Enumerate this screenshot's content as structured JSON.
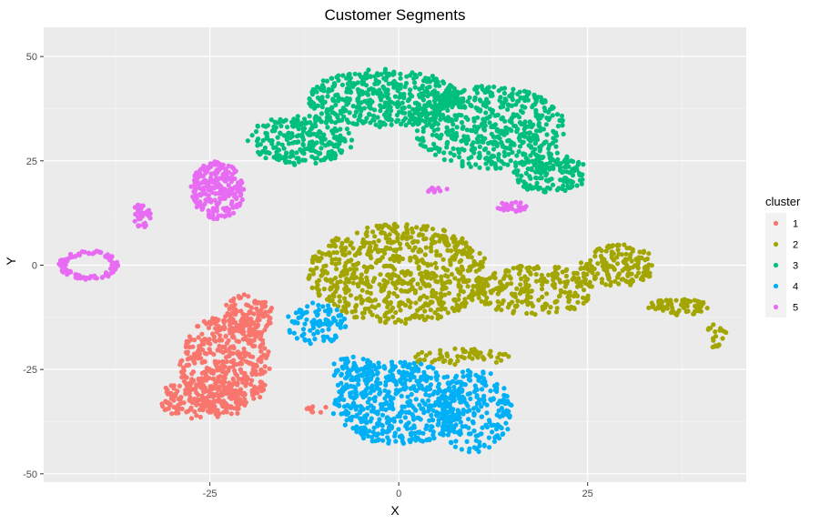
{
  "chart_data": {
    "type": "scatter",
    "title": "Customer Segments",
    "xlabel": "X",
    "ylabel": "Y",
    "xlim": [
      -47,
      46
    ],
    "ylim": [
      -52,
      57
    ],
    "x_ticks": [
      -25,
      0,
      25
    ],
    "y_ticks": [
      -50,
      -25,
      0,
      25,
      50
    ],
    "x_tick_labels": [
      "-25",
      "0",
      "25"
    ],
    "y_tick_labels": [
      "-50",
      "-25",
      "0",
      "25",
      "50"
    ],
    "grid": true,
    "legend": {
      "title": "cluster",
      "position": "right"
    },
    "colors": {
      "panel": "#ebebeb",
      "grid_major": "#ffffff",
      "series": [
        "#f8766d",
        "#a3a500",
        "#00bf7d",
        "#00b0f6",
        "#e76bf3"
      ]
    },
    "series": [
      {
        "name": "1",
        "blobs": [
          {
            "cx": -23,
            "cy": -24,
            "rx": 6,
            "ry": 12,
            "n": 450
          },
          {
            "cx": -26,
            "cy": -32,
            "rx": 6,
            "ry": 5,
            "n": 150
          },
          {
            "cx": -20,
            "cy": -12,
            "rx": 3.5,
            "ry": 5,
            "n": 120
          },
          {
            "cx": -11,
            "cy": -34,
            "rx": 1.5,
            "ry": 1.5,
            "n": 10
          }
        ]
      },
      {
        "name": "2",
        "blobs": [
          {
            "cx": 0,
            "cy": -2,
            "rx": 12,
            "ry": 12,
            "n": 700
          },
          {
            "cx": 18,
            "cy": -6,
            "rx": 8,
            "ry": 6,
            "n": 220
          },
          {
            "cx": 29,
            "cy": 0,
            "rx": 5,
            "ry": 5,
            "n": 160
          },
          {
            "cx": 37,
            "cy": -10,
            "rx": 4,
            "ry": 2,
            "n": 70
          },
          {
            "cx": 42,
            "cy": -17,
            "rx": 1.5,
            "ry": 3,
            "n": 20
          },
          {
            "cx": 8,
            "cy": -22,
            "rx": 7,
            "ry": 2,
            "n": 60
          }
        ]
      },
      {
        "name": "3",
        "blobs": [
          {
            "cx": -13,
            "cy": 30,
            "rx": 7,
            "ry": 6,
            "n": 240
          },
          {
            "cx": -2,
            "cy": 40,
            "rx": 10,
            "ry": 7,
            "n": 460
          },
          {
            "cx": 12,
            "cy": 33,
            "rx": 10,
            "ry": 10,
            "n": 520
          },
          {
            "cx": 20,
            "cy": 22,
            "rx": 5,
            "ry": 5,
            "n": 160
          }
        ]
      },
      {
        "name": "4",
        "blobs": [
          {
            "cx": 0,
            "cy": -33,
            "rx": 9,
            "ry": 10,
            "n": 520
          },
          {
            "cx": 10,
            "cy": -35,
            "rx": 5,
            "ry": 10,
            "n": 220
          },
          {
            "cx": -11,
            "cy": -14,
            "rx": 4,
            "ry": 5,
            "n": 90
          },
          {
            "cx": -6,
            "cy": -25,
            "rx": 3,
            "ry": 3,
            "n": 60
          }
        ]
      },
      {
        "name": "5",
        "blobs": [
          {
            "cx": -24,
            "cy": 18,
            "rx": 3.5,
            "ry": 7,
            "n": 240
          },
          {
            "cx": -34,
            "cy": 12,
            "rx": 1.2,
            "ry": 3,
            "n": 35
          },
          {
            "cx": -41,
            "cy": 0,
            "rx": 4,
            "ry": 3.5,
            "n": 110,
            "ring": true
          },
          {
            "cx": 15,
            "cy": 14,
            "rx": 2,
            "ry": 1.2,
            "n": 30
          },
          {
            "cx": 5,
            "cy": 18,
            "rx": 1.5,
            "ry": 0.7,
            "n": 10
          }
        ]
      }
    ]
  }
}
